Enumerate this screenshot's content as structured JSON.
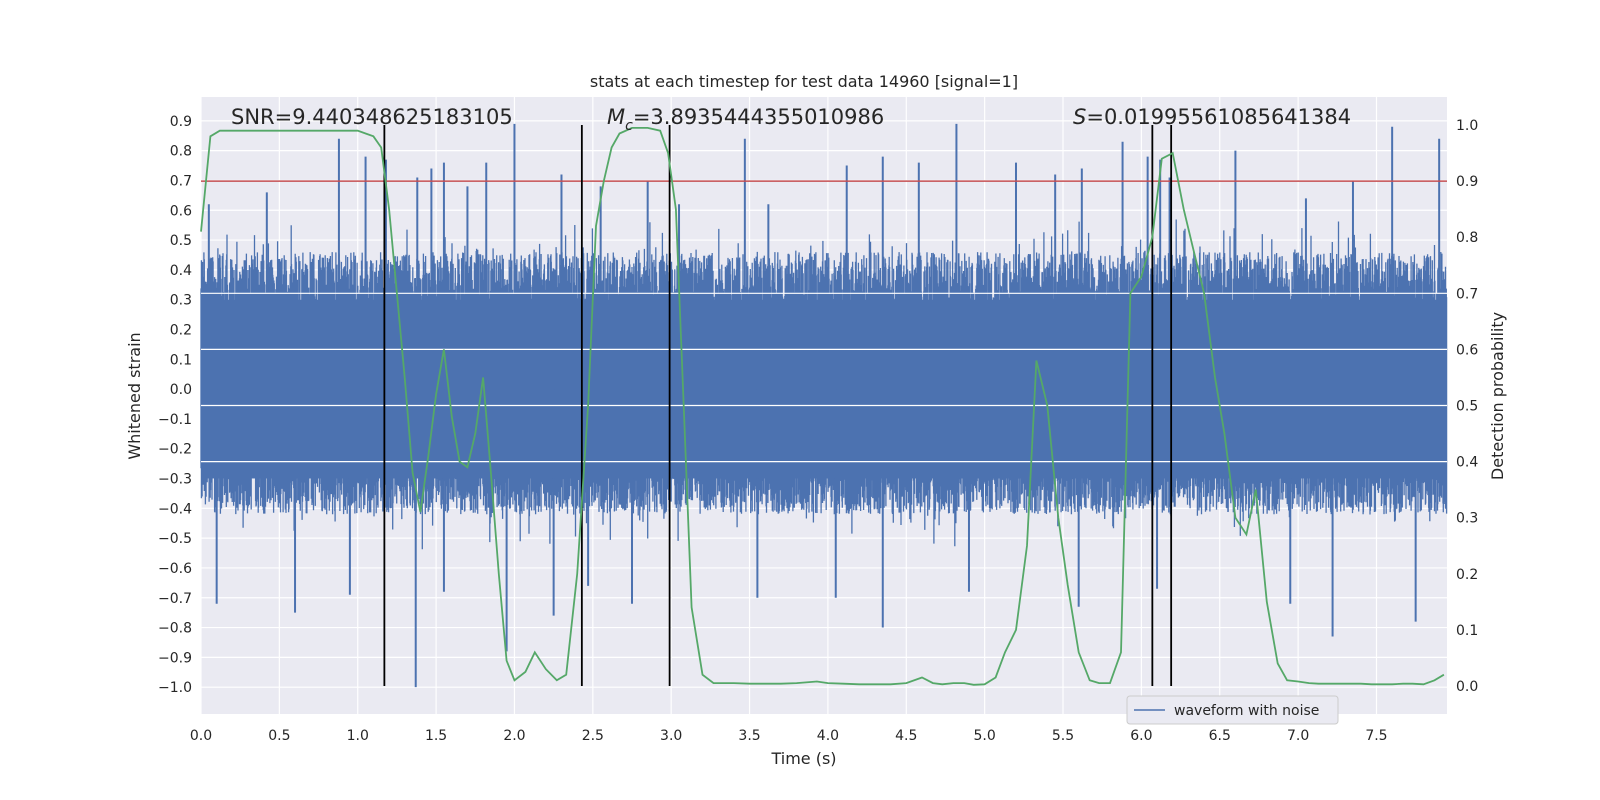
{
  "chart_data": {
    "type": "line",
    "title": "stats at each timestep for test data 14960 [signal=1]",
    "xlabel": "Time (s)",
    "ylabel_left": "Whitened strain",
    "ylabel_right": "Detection probability",
    "xlim": [
      0.0,
      7.95
    ],
    "ylim_left": [
      -1.09,
      0.98
    ],
    "ylim_right": [
      -0.05,
      1.05
    ],
    "x_ticks": [
      "0.0",
      "0.5",
      "1.0",
      "1.5",
      "2.0",
      "2.5",
      "3.0",
      "3.5",
      "4.0",
      "4.5",
      "5.0",
      "5.5",
      "6.0",
      "6.5",
      "7.0",
      "7.5"
    ],
    "y_left_ticks": [
      "0.9",
      "0.8",
      "0.7",
      "0.6",
      "0.5",
      "0.4",
      "0.3",
      "0.2",
      "0.1",
      "0.0",
      "-0.1",
      "-0.2",
      "-0.3",
      "-0.4",
      "-0.5",
      "-0.6",
      "-0.7",
      "-0.8",
      "-0.9",
      "-1.0"
    ],
    "y_right_ticks": [
      "1.0",
      "0.9",
      "0.8",
      "0.7",
      "0.6",
      "0.5",
      "0.4",
      "0.3",
      "0.2",
      "0.1",
      "0.0"
    ],
    "annotations": {
      "snr": "SNR=9.440348625183105",
      "mc_symbol": "M",
      "mc_sub": "c",
      "mc_value": "=3.8935444355010986",
      "s_symbol": "S",
      "s_value": "=0.01995561085641384"
    },
    "threshold": {
      "value": 0.9,
      "axis": "right",
      "color": "#c44e52"
    },
    "vertical_lines": [
      1.17,
      2.43,
      2.99,
      6.07,
      6.19
    ],
    "waveform": {
      "name": "waveform with noise",
      "color": "#4c72b0",
      "duration": 7.95,
      "typical_low": -0.42,
      "typical_high": 0.46,
      "spike_peaks": [
        {
          "t": 0.05,
          "v": 0.62
        },
        {
          "t": 0.42,
          "v": 0.66
        },
        {
          "t": 0.88,
          "v": 0.84
        },
        {
          "t": 1.05,
          "v": 0.78
        },
        {
          "t": 1.18,
          "v": 0.77
        },
        {
          "t": 1.38,
          "v": 0.71
        },
        {
          "t": 1.47,
          "v": 0.74
        },
        {
          "t": 1.55,
          "v": 0.76
        },
        {
          "t": 1.7,
          "v": 0.68
        },
        {
          "t": 1.82,
          "v": 0.76
        },
        {
          "t": 2.0,
          "v": 0.89
        },
        {
          "t": 2.3,
          "v": 0.72
        },
        {
          "t": 2.55,
          "v": 0.68
        },
        {
          "t": 2.85,
          "v": 0.7
        },
        {
          "t": 3.05,
          "v": 0.62
        },
        {
          "t": 3.47,
          "v": 0.84
        },
        {
          "t": 3.62,
          "v": 0.62
        },
        {
          "t": 4.12,
          "v": 0.75
        },
        {
          "t": 4.35,
          "v": 0.78
        },
        {
          "t": 4.58,
          "v": 0.76
        },
        {
          "t": 4.82,
          "v": 0.89
        },
        {
          "t": 5.2,
          "v": 0.76
        },
        {
          "t": 5.45,
          "v": 0.72
        },
        {
          "t": 5.62,
          "v": 0.74
        },
        {
          "t": 5.88,
          "v": 0.83
        },
        {
          "t": 6.04,
          "v": 0.78
        },
        {
          "t": 6.12,
          "v": 0.77
        },
        {
          "t": 6.18,
          "v": 0.71
        },
        {
          "t": 6.6,
          "v": 0.8
        },
        {
          "t": 7.05,
          "v": 0.64
        },
        {
          "t": 7.35,
          "v": 0.7
        },
        {
          "t": 7.6,
          "v": 0.88
        },
        {
          "t": 7.9,
          "v": 0.84
        }
      ],
      "spike_troughs": [
        {
          "t": 0.1,
          "v": -0.72
        },
        {
          "t": 0.6,
          "v": -0.75
        },
        {
          "t": 0.95,
          "v": -0.69
        },
        {
          "t": 1.37,
          "v": -1.0
        },
        {
          "t": 1.55,
          "v": -0.68
        },
        {
          "t": 1.95,
          "v": -0.88
        },
        {
          "t": 2.25,
          "v": -0.76
        },
        {
          "t": 2.47,
          "v": -0.66
        },
        {
          "t": 2.75,
          "v": -0.72
        },
        {
          "t": 3.55,
          "v": -0.7
        },
        {
          "t": 4.05,
          "v": -0.7
        },
        {
          "t": 4.35,
          "v": -0.8
        },
        {
          "t": 4.9,
          "v": -0.68
        },
        {
          "t": 5.6,
          "v": -0.73
        },
        {
          "t": 6.1,
          "v": -0.67
        },
        {
          "t": 6.95,
          "v": -0.72
        },
        {
          "t": 7.22,
          "v": -0.83
        },
        {
          "t": 7.75,
          "v": -0.78
        }
      ]
    },
    "detection_probability": {
      "color": "#55a868",
      "x": [
        0.0,
        0.06,
        0.12,
        0.2,
        0.3,
        0.4,
        0.5,
        0.6,
        0.7,
        0.8,
        0.9,
        1.0,
        1.05,
        1.1,
        1.15,
        1.2,
        1.25,
        1.3,
        1.35,
        1.4,
        1.45,
        1.5,
        1.55,
        1.6,
        1.65,
        1.7,
        1.75,
        1.8,
        1.85,
        1.9,
        1.95,
        2.0,
        2.07,
        2.13,
        2.2,
        2.27,
        2.33,
        2.4,
        2.47,
        2.52,
        2.57,
        2.62,
        2.67,
        2.75,
        2.85,
        2.93,
        2.98,
        3.03,
        3.08,
        3.13,
        3.2,
        3.27,
        3.33,
        3.4,
        3.5,
        3.6,
        3.7,
        3.8,
        3.93,
        4.0,
        4.1,
        4.2,
        4.3,
        4.4,
        4.5,
        4.6,
        4.67,
        4.73,
        4.8,
        4.87,
        4.93,
        5.0,
        5.07,
        5.13,
        5.2,
        5.27,
        5.33,
        5.4,
        5.47,
        5.53,
        5.6,
        5.67,
        5.73,
        5.8,
        5.87,
        5.93,
        6.0,
        6.07,
        6.13,
        6.2,
        6.27,
        6.33,
        6.4,
        6.47,
        6.53,
        6.6,
        6.67,
        6.73,
        6.8,
        6.87,
        6.93,
        7.0,
        7.07,
        7.13,
        7.2,
        7.27,
        7.33,
        7.4,
        7.47,
        7.53,
        7.6,
        7.67,
        7.73,
        7.8,
        7.87,
        7.93
      ],
      "y": [
        0.81,
        0.98,
        0.99,
        0.99,
        0.99,
        0.99,
        0.99,
        0.99,
        0.99,
        0.99,
        0.99,
        0.99,
        0.985,
        0.98,
        0.96,
        0.85,
        0.7,
        0.55,
        0.38,
        0.31,
        0.41,
        0.52,
        0.6,
        0.48,
        0.4,
        0.39,
        0.45,
        0.55,
        0.38,
        0.2,
        0.045,
        0.01,
        0.025,
        0.06,
        0.03,
        0.01,
        0.02,
        0.2,
        0.5,
        0.82,
        0.9,
        0.96,
        0.985,
        0.995,
        0.995,
        0.99,
        0.95,
        0.85,
        0.5,
        0.14,
        0.02,
        0.005,
        0.005,
        0.005,
        0.004,
        0.004,
        0.004,
        0.005,
        0.008,
        0.005,
        0.004,
        0.003,
        0.003,
        0.003,
        0.005,
        0.015,
        0.005,
        0.003,
        0.005,
        0.005,
        0.002,
        0.003,
        0.015,
        0.06,
        0.1,
        0.25,
        0.58,
        0.5,
        0.3,
        0.18,
        0.06,
        0.01,
        0.005,
        0.005,
        0.06,
        0.7,
        0.73,
        0.8,
        0.94,
        0.95,
        0.85,
        0.78,
        0.7,
        0.55,
        0.45,
        0.3,
        0.27,
        0.35,
        0.15,
        0.04,
        0.01,
        0.008,
        0.005,
        0.004,
        0.004,
        0.004,
        0.004,
        0.004,
        0.003,
        0.003,
        0.003,
        0.004,
        0.004,
        0.003,
        0.01,
        0.02
      ]
    },
    "legend": {
      "label": "waveform with noise",
      "placement": "lower-right"
    }
  }
}
